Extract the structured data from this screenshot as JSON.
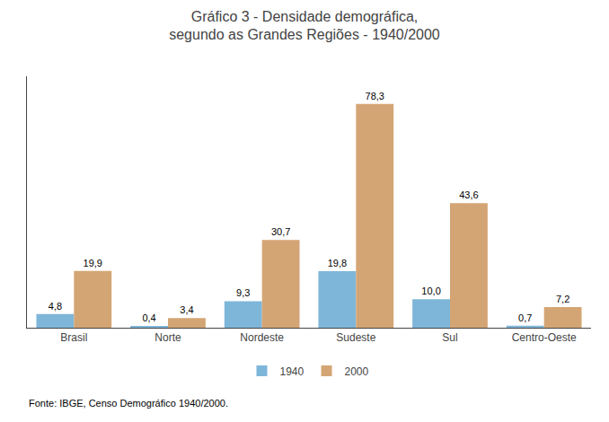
{
  "chart_data": {
    "type": "bar",
    "title": "Gráfico 3 - Densidade demográfica,\nsegundo as Grandes Regiões - 1940/2000",
    "categories": [
      "Brasil",
      "Norte",
      "Nordeste",
      "Sudeste",
      "Sul",
      "Centro-Oeste"
    ],
    "series": [
      {
        "name": "1940",
        "color": "#7eb6d9",
        "values": [
          4.8,
          0.4,
          9.3,
          19.8,
          10.0,
          0.7
        ],
        "value_labels": [
          "4,8",
          "0,4",
          "9,3",
          "19,8",
          "10,0",
          "0,7"
        ]
      },
      {
        "name": "2000",
        "color": "#d4a574",
        "values": [
          19.9,
          3.4,
          30.7,
          78.3,
          43.6,
          7.2
        ],
        "value_labels": [
          "19,9",
          "3,4",
          "30,7",
          "78,3",
          "43,6",
          "7,2"
        ]
      }
    ],
    "ylim": [
      0,
      88
    ],
    "data_labels": true,
    "tick_labels": "x",
    "grid": false,
    "legend": "bottom",
    "annotations": [
      {
        "text": "Fonte: IBGE, Censo Demográfico 1940/2000."
      }
    ]
  }
}
